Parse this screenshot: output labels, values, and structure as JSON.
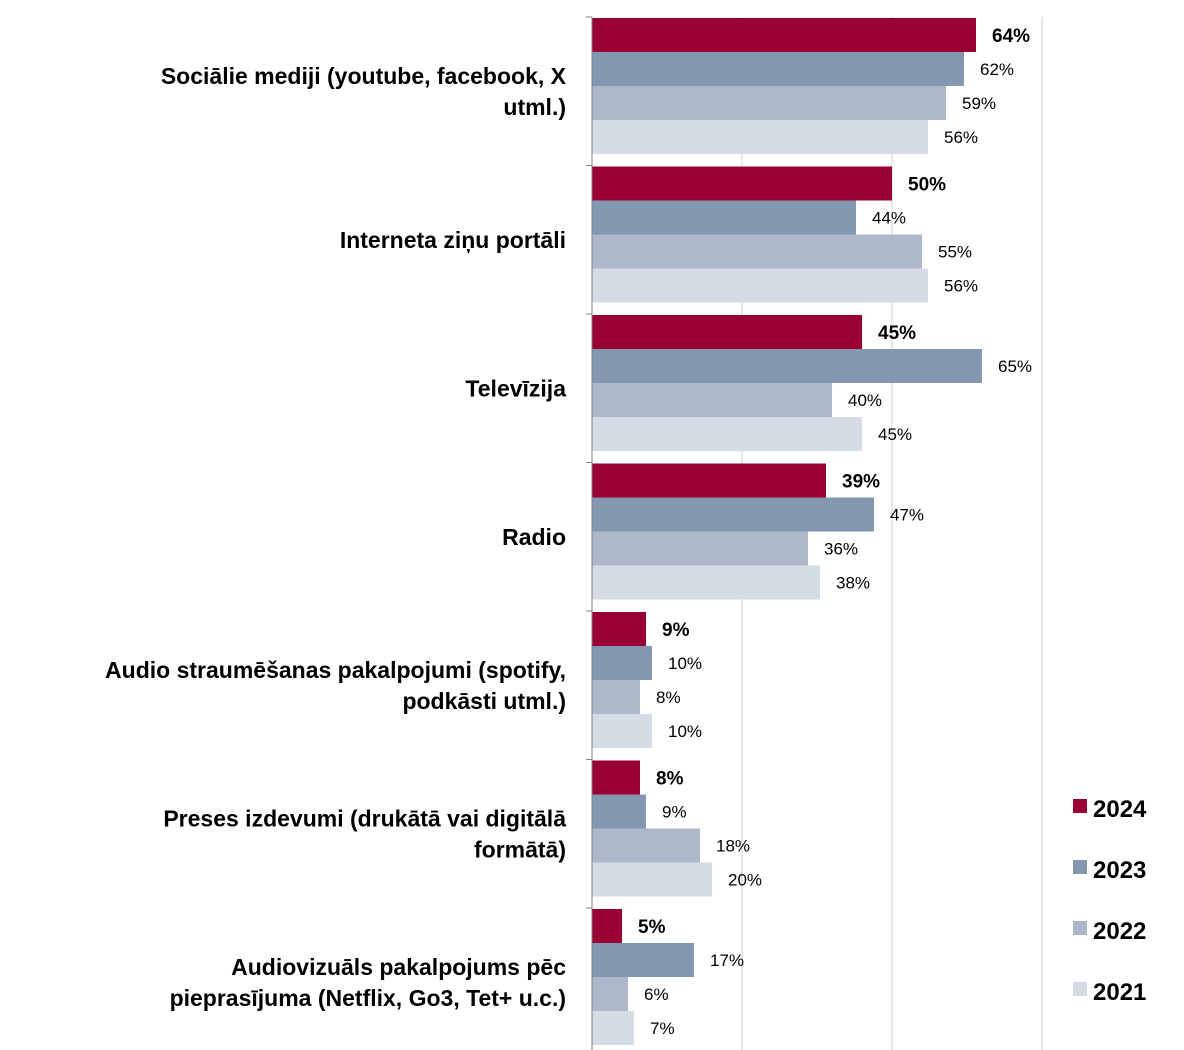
{
  "chart_data": {
    "type": "bar",
    "orientation": "horizontal",
    "categories": [
      [
        "Sociālie mediji (youtube, facebook, X",
        "utml.)"
      ],
      [
        "Interneta ziņu portāli"
      ],
      [
        "Televīzija"
      ],
      [
        "Radio"
      ],
      [
        "Audio straumēšanas pakalpojumi (spotify,",
        "podkāsti utml.)"
      ],
      [
        "Preses izdevumi (drukātā vai digitālā",
        "formātā)"
      ],
      [
        "Audiovizuāls pakalpojums pēc",
        "pieprasījuma (Netflix, Go3, Tet+ u.c.)"
      ]
    ],
    "series": [
      {
        "name": "2024",
        "color": "#990033",
        "values": [
          64,
          50,
          45,
          39,
          9,
          8,
          5
        ]
      },
      {
        "name": "2023",
        "color": "#8497B0",
        "values": [
          62,
          44,
          65,
          47,
          10,
          9,
          17
        ]
      },
      {
        "name": "2022",
        "color": "#ADB9CA",
        "values": [
          59,
          55,
          40,
          36,
          8,
          18,
          6
        ]
      },
      {
        "name": "2021",
        "color": "#D6DCE5",
        "values": [
          56,
          56,
          45,
          38,
          10,
          20,
          7
        ]
      }
    ],
    "value_suffix": "%",
    "bold_series": "2024",
    "xlim": [
      0,
      75
    ],
    "grid": true,
    "legend_position": "bottom-right",
    "gridline_color": "#D0D0D0"
  }
}
